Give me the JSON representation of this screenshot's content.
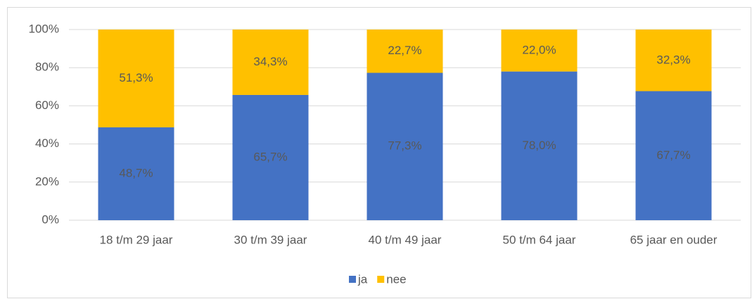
{
  "chart_data": {
    "type": "stacked_bar",
    "categories": [
      "18 t/m 29 jaar",
      "30 t/m 39 jaar",
      "40 t/m 49 jaar",
      "50 t/m 64 jaar",
      "65 jaar en ouder"
    ],
    "series": [
      {
        "name": "ja",
        "color": "#4472c4",
        "values": [
          48.7,
          65.7,
          77.3,
          78.0,
          67.7
        ],
        "value_labels": [
          "48,7%",
          "65,7%",
          "77,3%",
          "78,0%",
          "67,7%"
        ]
      },
      {
        "name": "nee",
        "color": "#ffc000",
        "values": [
          51.3,
          34.3,
          22.7,
          22.0,
          32.3
        ],
        "value_labels": [
          "51,3%",
          "34,3%",
          "22,7%",
          "22,0%",
          "32,3%"
        ]
      }
    ],
    "ylim": [
      0,
      100
    ],
    "yticks": [
      {
        "value": 0,
        "label": "0%"
      },
      {
        "value": 20,
        "label": "20%"
      },
      {
        "value": 40,
        "label": "40%"
      },
      {
        "value": 60,
        "label": "60%"
      },
      {
        "value": 80,
        "label": "80%"
      },
      {
        "value": 100,
        "label": "100%"
      }
    ],
    "grid": true,
    "legend": "bottom"
  }
}
